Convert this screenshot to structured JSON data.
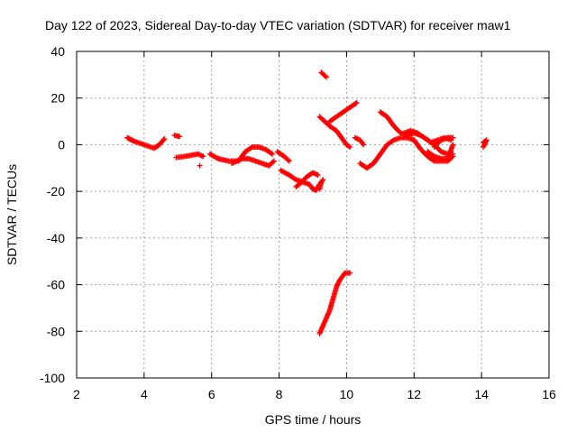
{
  "chart_data": {
    "type": "scatter",
    "title": "Day 122 of 2023, Sidereal Day-to-day VTEC variation (SDTVAR) for receiver maw1",
    "xlabel": "GPS time / hours",
    "ylabel": "SDTVAR / TECUs",
    "xlim": [
      2,
      16
    ],
    "ylim": [
      -100,
      40
    ],
    "xticks": [
      2,
      4,
      6,
      8,
      10,
      12,
      14,
      16
    ],
    "yticks": [
      -100,
      -80,
      -60,
      -40,
      -20,
      0,
      20,
      40
    ],
    "grid": true,
    "marker": "+",
    "series": [
      {
        "name": "SDTVAR",
        "color": "#ff0000",
        "segments": [
          [
            [
              3.5,
              3
            ],
            [
              3.7,
              1.5
            ],
            [
              3.9,
              0.5
            ],
            [
              4.1,
              -0.5
            ],
            [
              4.3,
              -1.5
            ],
            [
              4.45,
              0
            ],
            [
              4.6,
              2.5
            ]
          ],
          [
            [
              4.9,
              4
            ],
            [
              5.05,
              3.5
            ]
          ],
          [
            [
              4.95,
              -5.5
            ],
            [
              5.2,
              -5
            ],
            [
              5.4,
              -4.5
            ],
            [
              5.6,
              -4
            ],
            [
              5.75,
              -5
            ]
          ],
          [
            [
              5.65,
              -9
            ]
          ],
          [
            [
              5.95,
              -4
            ],
            [
              6.2,
              -6
            ],
            [
              6.5,
              -7
            ],
            [
              6.8,
              -7
            ],
            [
              7.0,
              -3
            ],
            [
              7.2,
              -1
            ],
            [
              7.4,
              -1
            ],
            [
              7.6,
              -2
            ],
            [
              7.8,
              -4
            ]
          ],
          [
            [
              6.6,
              -8
            ],
            [
              6.9,
              -6
            ],
            [
              7.1,
              -6
            ],
            [
              7.3,
              -7
            ],
            [
              7.5,
              -8
            ],
            [
              7.7,
              -9
            ],
            [
              7.85,
              -7
            ]
          ],
          [
            [
              7.95,
              -3
            ],
            [
              8.15,
              -5
            ],
            [
              8.3,
              -7
            ]
          ],
          [
            [
              8.05,
              -11
            ],
            [
              8.3,
              -13
            ],
            [
              8.5,
              -15
            ],
            [
              8.7,
              -16
            ],
            [
              8.9,
              -17
            ],
            [
              9.0,
              -19
            ],
            [
              9.1,
              -19.5
            ],
            [
              9.2,
              -17
            ],
            [
              9.3,
              -15
            ]
          ],
          [
            [
              8.5,
              -18
            ],
            [
              8.6,
              -17
            ],
            [
              8.8,
              -14
            ],
            [
              9.0,
              -12
            ],
            [
              9.15,
              -13
            ]
          ],
          [
            [
              9.2,
              -19
            ],
            [
              9.25,
              -16
            ]
          ],
          [
            [
              9.25,
              31
            ],
            [
              9.4,
              29
            ]
          ],
          [
            [
              9.2,
              12
            ],
            [
              9.35,
              10
            ],
            [
              9.5,
              8
            ],
            [
              9.7,
              6
            ],
            [
              9.85,
              3
            ],
            [
              10.0,
              0
            ],
            [
              10.1,
              -1
            ]
          ],
          [
            [
              9.5,
              10
            ],
            [
              9.7,
              12
            ],
            [
              9.9,
              14
            ],
            [
              10.1,
              16
            ],
            [
              10.3,
              18
            ]
          ],
          [
            [
              10.25,
              3
            ],
            [
              10.4,
              2
            ],
            [
              10.5,
              0
            ]
          ],
          [
            [
              10.4,
              -8
            ],
            [
              10.6,
              -10
            ],
            [
              10.8,
              -8
            ],
            [
              11.0,
              -4
            ],
            [
              11.2,
              0
            ],
            [
              11.4,
              2
            ],
            [
              11.6,
              3
            ],
            [
              11.8,
              3
            ],
            [
              12.0,
              2
            ],
            [
              12.2,
              -2
            ],
            [
              12.4,
              -5
            ],
            [
              12.6,
              -7
            ],
            [
              12.8,
              -7
            ],
            [
              13.0,
              -7
            ],
            [
              13.15,
              -5
            ]
          ],
          [
            [
              11.0,
              14
            ],
            [
              11.2,
              12
            ],
            [
              11.4,
              8
            ],
            [
              11.6,
              5
            ],
            [
              11.8,
              4
            ],
            [
              12.0,
              5
            ],
            [
              12.2,
              4
            ],
            [
              12.4,
              2
            ],
            [
              12.6,
              0
            ],
            [
              12.8,
              -3
            ],
            [
              13.0,
              -4
            ],
            [
              13.15,
              -4
            ]
          ],
          [
            [
              11.7,
              5
            ],
            [
              11.9,
              6
            ],
            [
              12.1,
              5
            ],
            [
              12.3,
              3
            ],
            [
              12.5,
              1
            ],
            [
              12.7,
              2
            ],
            [
              12.9,
              3
            ],
            [
              13.1,
              2
            ]
          ],
          [
            [
              12.4,
              -3
            ],
            [
              12.6,
              -5
            ],
            [
              12.8,
              -6
            ],
            [
              13.0,
              -6
            ],
            [
              13.15,
              0
            ]
          ],
          [
            [
              12.6,
              -1
            ],
            [
              12.8,
              2
            ],
            [
              13.0,
              3
            ],
            [
              13.15,
              3
            ]
          ],
          [
            [
              14.05,
              1
            ],
            [
              14.15,
              2
            ],
            [
              14.05,
              -1
            ]
          ],
          [
            [
              9.2,
              -81
            ],
            [
              9.35,
              -76
            ],
            [
              9.5,
              -71
            ],
            [
              9.6,
              -66
            ],
            [
              9.7,
              -61
            ],
            [
              9.8,
              -58
            ],
            [
              9.95,
              -55
            ],
            [
              10.1,
              -55
            ]
          ]
        ]
      }
    ]
  }
}
